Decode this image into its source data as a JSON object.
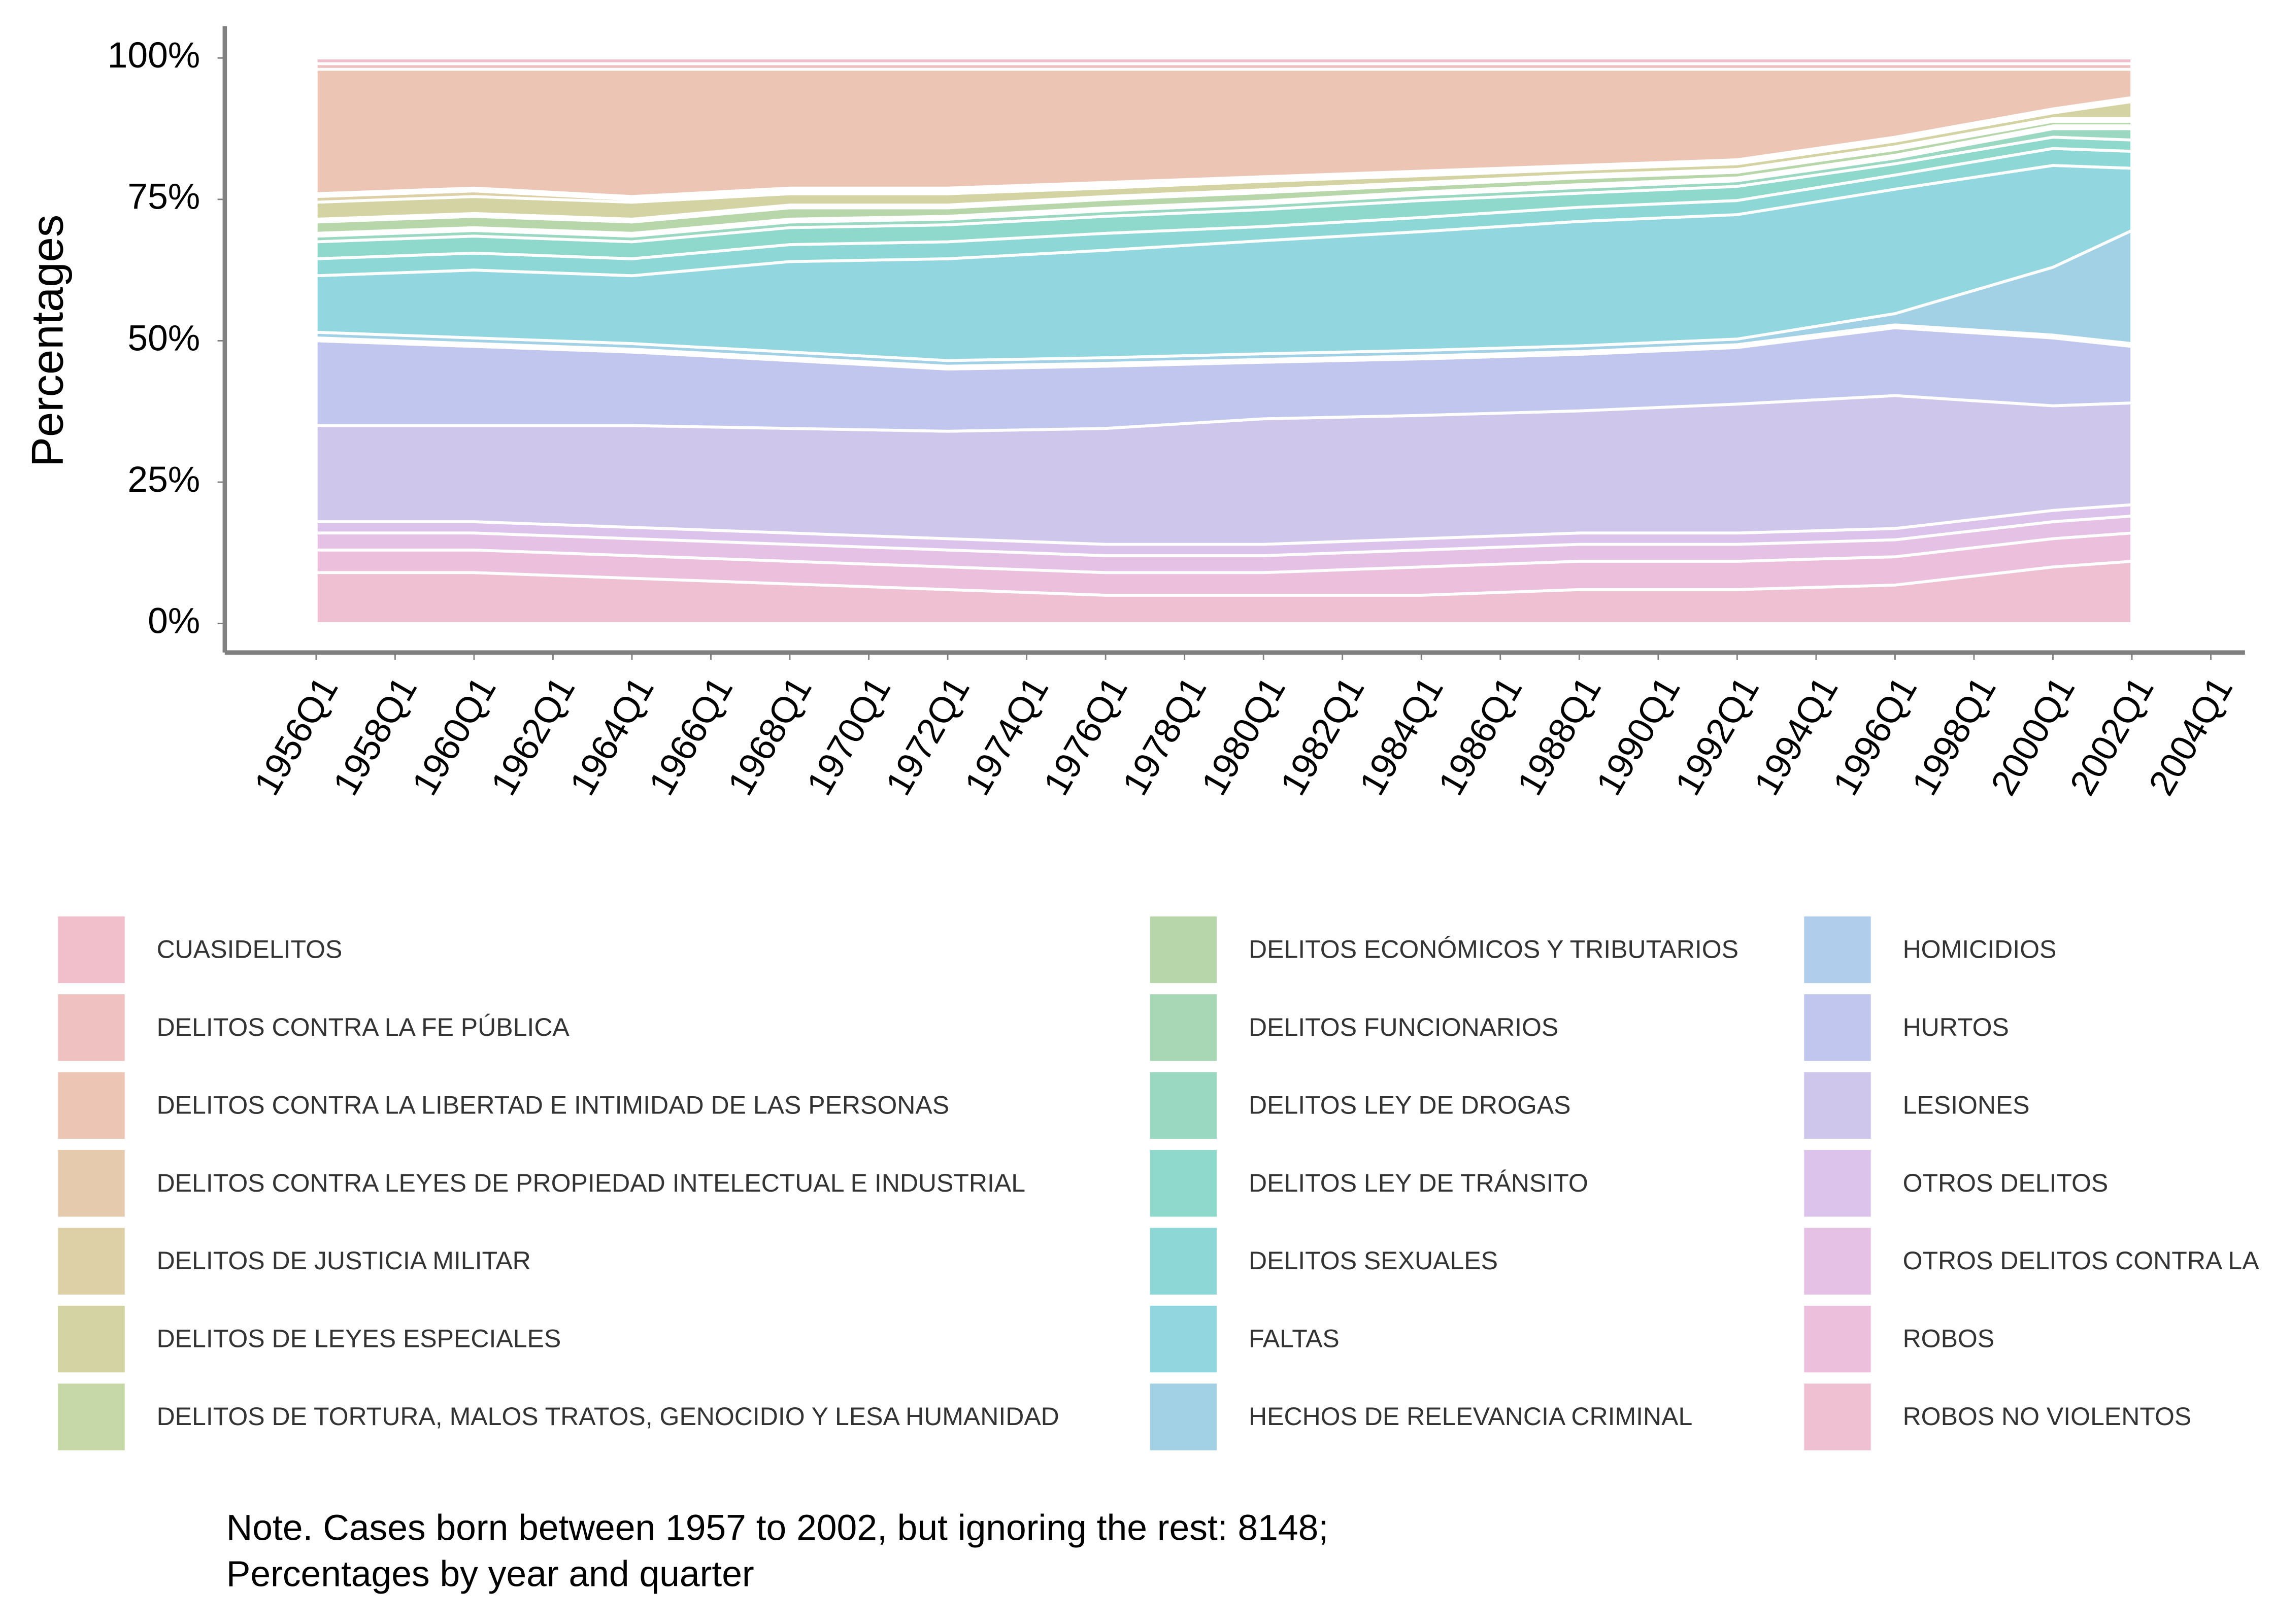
{
  "chart_data": {
    "type": "stacked-area",
    "y_label": "Percentages",
    "x": [
      "1956Q1",
      "1960Q1",
      "1964Q1",
      "1968Q1",
      "1972Q1",
      "1976Q1",
      "1980Q1",
      "1984Q1",
      "1988Q1",
      "1992Q1",
      "1996Q1",
      "2000Q1",
      "2002Q1"
    ],
    "xticks": [
      "1956Q1",
      "1958Q1",
      "1960Q1",
      "1962Q1",
      "1964Q1",
      "1966Q1",
      "1968Q1",
      "1970Q1",
      "1972Q1",
      "1974Q1",
      "1976Q1",
      "1978Q1",
      "1980Q1",
      "1982Q1",
      "1984Q1",
      "1986Q1",
      "1988Q1",
      "1990Q1",
      "1992Q1",
      "1994Q1",
      "1996Q1",
      "1998Q1",
      "2000Q1",
      "2002Q1",
      "2004Q1"
    ],
    "ylim": [
      0,
      100
    ],
    "yticks": [
      {
        "value": 0,
        "label": "0%"
      },
      {
        "value": 25,
        "label": "25%"
      },
      {
        "value": 50,
        "label": "50%"
      },
      {
        "value": 75,
        "label": "75%"
      },
      {
        "value": 100,
        "label": "100%"
      }
    ],
    "legend_position": "bottom",
    "series": [
      {
        "name": "CUASIDELITOS",
        "color": "#f0bfcb",
        "values": [
          1,
          1,
          1,
          1,
          1,
          1,
          1,
          1,
          1,
          1,
          1,
          1,
          1
        ]
      },
      {
        "name": "DELITOS CONTRA LA FE PÚBLICA",
        "color": "#efc1c0",
        "values": [
          1,
          1,
          1,
          1,
          1,
          1,
          1,
          1,
          1,
          1,
          1,
          1,
          1
        ]
      },
      {
        "name": "DELITOS CONTRA LA LIBERTAD E INTIMIDAD DE LAS PERSONAS",
        "color": "#ecc5b4",
        "values": [
          22,
          21,
          22.5,
          21,
          21,
          20,
          19,
          18,
          17,
          16,
          12,
          7,
          5
        ]
      },
      {
        "name": "DELITOS CONTRA LEYES DE PROPIEDAD INTELECTUAL E INDUSTRIAL",
        "color": "#e6caae",
        "values": [
          0.5,
          0.5,
          0.5,
          0.5,
          0.5,
          0.5,
          0.5,
          0.5,
          0.5,
          0.5,
          0.5,
          0.5,
          0.5
        ]
      },
      {
        "name": "DELITOS DE JUSTICIA MILITAR",
        "color": "#ddcfa6",
        "values": [
          1,
          1,
          0.5,
          0.5,
          0.5,
          0.5,
          0.3,
          0.3,
          0.2,
          0.2,
          0.2,
          0.2,
          0.2
        ]
      },
      {
        "name": "DELITOS DE LEYES ESPECIALES",
        "color": "#d4d3a3",
        "values": [
          3,
          3,
          3,
          2,
          2,
          1.5,
          1.5,
          1.2,
          1,
          1,
          1,
          1,
          3
        ]
      },
      {
        "name": "DELITOS DE TORTURA, MALOS TRATOS, GENOCIDIO Y LESA HUMANIDAD",
        "color": "#c7d8a8",
        "values": [
          0.5,
          0.5,
          0.5,
          0.5,
          0.5,
          0.5,
          0.5,
          0.5,
          0.5,
          0.5,
          0.5,
          0.5,
          0.5
        ]
      },
      {
        "name": "DELITOS ECONÓMICOS Y TRIBUTARIOS",
        "color": "#b7d7ab",
        "values": [
          2,
          2,
          2,
          2,
          1.5,
          1.5,
          1.5,
          1.2,
          1.2,
          1,
          1,
          0.8,
          0.8
        ]
      },
      {
        "name": "DELITOS FUNCIONARIOS",
        "color": "#a8d7b6",
        "values": [
          0.5,
          0.5,
          0.5,
          0.5,
          0.5,
          0.5,
          0.5,
          0.5,
          0.5,
          0.5,
          0.5,
          0.5,
          0.5
        ]
      },
      {
        "name": "DELITOS LEY DE DROGAS",
        "color": "#9bd8c2",
        "values": [
          1,
          1,
          1,
          1,
          1,
          1,
          1,
          1,
          1,
          1,
          1,
          1.5,
          2
        ]
      },
      {
        "name": "DELITOS LEY DE TRÁNSITO",
        "color": "#8fd9cc",
        "values": [
          3,
          3,
          3,
          3,
          3,
          3,
          3,
          3,
          2.5,
          2.5,
          2,
          2,
          2
        ]
      },
      {
        "name": "DELITOS SEXUALES",
        "color": "#8dd8d6",
        "values": [
          3,
          3,
          3,
          3,
          3,
          3,
          2.5,
          2.5,
          2.5,
          2.5,
          2.5,
          3,
          3
        ]
      },
      {
        "name": "FALTAS",
        "color": "#92d6e0",
        "values": [
          10,
          12,
          12,
          16,
          18,
          19,
          20,
          21,
          22,
          22,
          22,
          18,
          11
        ]
      },
      {
        "name": "HECHOS DE RELEVANCIA CRIMINAL",
        "color": "#a2d1e6",
        "values": [
          1,
          1,
          1,
          1,
          1,
          1,
          1,
          1,
          1,
          1,
          2,
          12,
          20
        ]
      },
      {
        "name": "HOMICIDIOS",
        "color": "#b0cdec",
        "values": [
          0.5,
          0.5,
          0.5,
          0.5,
          0.5,
          0.5,
          0.5,
          0.5,
          0.5,
          0.5,
          0.5,
          0.5,
          0.5
        ]
      },
      {
        "name": "HURTOS",
        "color": "#c0c6ee",
        "values": [
          15,
          14,
          13,
          12,
          11,
          11,
          10,
          10,
          10,
          10,
          12,
          12,
          10
        ]
      },
      {
        "name": "LESIONES",
        "color": "#cfc6ec",
        "values": [
          17,
          17,
          18,
          18.5,
          19,
          20.5,
          22.2,
          21.8,
          21.6,
          22.8,
          23.5,
          18.5,
          18
        ]
      },
      {
        "name": "OTROS DELITOS",
        "color": "#dcc3eb",
        "values": [
          2,
          2,
          2,
          2,
          2,
          2,
          2,
          2,
          2,
          2,
          2,
          2,
          2
        ]
      },
      {
        "name": "OTROS DELITOS CONTRA LA",
        "color": "#e5c1e6",
        "values": [
          3,
          3,
          3,
          3,
          3,
          3,
          3,
          3,
          3,
          3,
          3,
          3,
          3
        ]
      },
      {
        "name": "ROBOS",
        "color": "#ecbfdc",
        "values": [
          4,
          4,
          4,
          4,
          4,
          4,
          4,
          5,
          5,
          5,
          5,
          5,
          5
        ]
      },
      {
        "name": "ROBOS NO VIOLENTOS",
        "color": "#efbfd2",
        "values": [
          9,
          9,
          8,
          7,
          6,
          5,
          5,
          5,
          6,
          6,
          6.8,
          10,
          11
        ]
      }
    ],
    "note": [
      "Note. Cases born between 1957 to 2002, but ignoring the rest: 8148;",
      "Percentages by year and quarter"
    ]
  }
}
